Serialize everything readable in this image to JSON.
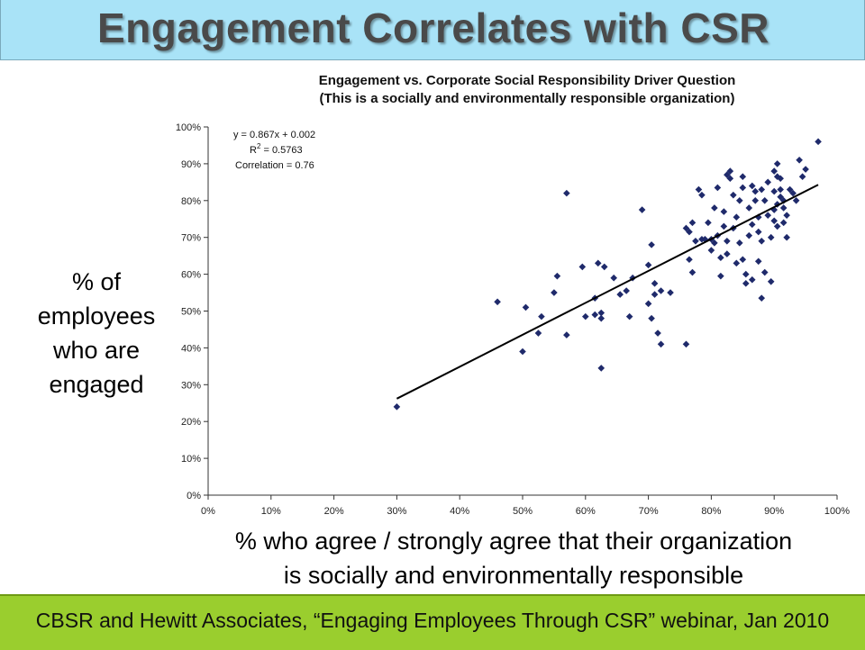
{
  "slide": {
    "title": "Engagement Correlates with CSR",
    "y_axis_caption_lines": [
      "% of",
      "employees",
      "who are",
      "engaged"
    ],
    "x_axis_caption_lines": [
      "% who agree / strongly agree that their organization",
      "is socially and environmentally responsible"
    ],
    "footer": "CBSR and Hewitt Associates, “Engaging Employees Through CSR” webinar, Jan 2010"
  },
  "colors": {
    "header_bg": "#a9e3f7",
    "footer_bg": "#9ace2e",
    "marker": "#1f2a6b",
    "trendline": "#000000"
  },
  "chart_data": {
    "type": "scatter",
    "title_lines": [
      "Engagement vs. Corporate Social Responsibility Driver Question",
      "(This is a socially and environmentally responsible organization)"
    ],
    "xlim": [
      0,
      1
    ],
    "ylim": [
      0,
      1
    ],
    "x_ticks": [
      0,
      0.1,
      0.2,
      0.3,
      0.4,
      0.5,
      0.6,
      0.7,
      0.8,
      0.9,
      1.0
    ],
    "y_ticks": [
      0,
      0.1,
      0.2,
      0.3,
      0.4,
      0.5,
      0.6,
      0.7,
      0.8,
      0.9,
      1.0
    ],
    "x_tick_labels": [
      "0%",
      "10%",
      "20%",
      "30%",
      "40%",
      "50%",
      "60%",
      "70%",
      "80%",
      "90%",
      "100%"
    ],
    "y_tick_labels": [
      "0%",
      "10%",
      "20%",
      "30%",
      "40%",
      "50%",
      "60%",
      "70%",
      "80%",
      "90%",
      "100%"
    ],
    "grid": false,
    "annotation": {
      "equation": "y = 0.867x + 0.002",
      "r2_prefix": "R",
      "r2_sup": "2",
      "r2_value": " = 0.5763",
      "correlation": "Correlation = 0.76"
    },
    "trendline": {
      "slope": 0.867,
      "intercept": 0.002,
      "x_range": [
        0.3,
        0.97
      ]
    },
    "points": [
      [
        0.3,
        0.24
      ],
      [
        0.46,
        0.525
      ],
      [
        0.5,
        0.39
      ],
      [
        0.505,
        0.51
      ],
      [
        0.525,
        0.44
      ],
      [
        0.53,
        0.485
      ],
      [
        0.55,
        0.55
      ],
      [
        0.555,
        0.595
      ],
      [
        0.57,
        0.82
      ],
      [
        0.57,
        0.435
      ],
      [
        0.595,
        0.62
      ],
      [
        0.6,
        0.485
      ],
      [
        0.615,
        0.535
      ],
      [
        0.615,
        0.49
      ],
      [
        0.62,
        0.63
      ],
      [
        0.625,
        0.345
      ],
      [
        0.625,
        0.495
      ],
      [
        0.625,
        0.48
      ],
      [
        0.63,
        0.62
      ],
      [
        0.645,
        0.59
      ],
      [
        0.655,
        0.545
      ],
      [
        0.665,
        0.555
      ],
      [
        0.67,
        0.485
      ],
      [
        0.675,
        0.59
      ],
      [
        0.69,
        0.775
      ],
      [
        0.7,
        0.52
      ],
      [
        0.7,
        0.625
      ],
      [
        0.705,
        0.68
      ],
      [
        0.705,
        0.48
      ],
      [
        0.71,
        0.575
      ],
      [
        0.71,
        0.545
      ],
      [
        0.715,
        0.44
      ],
      [
        0.72,
        0.555
      ],
      [
        0.72,
        0.41
      ],
      [
        0.735,
        0.55
      ],
      [
        0.76,
        0.41
      ],
      [
        0.76,
        0.725
      ],
      [
        0.765,
        0.715
      ],
      [
        0.765,
        0.64
      ],
      [
        0.77,
        0.74
      ],
      [
        0.77,
        0.605
      ],
      [
        0.775,
        0.69
      ],
      [
        0.78,
        0.83
      ],
      [
        0.785,
        0.815
      ],
      [
        0.785,
        0.695
      ],
      [
        0.79,
        0.695
      ],
      [
        0.795,
        0.74
      ],
      [
        0.8,
        0.695
      ],
      [
        0.8,
        0.665
      ],
      [
        0.805,
        0.78
      ],
      [
        0.805,
        0.685
      ],
      [
        0.81,
        0.835
      ],
      [
        0.81,
        0.705
      ],
      [
        0.815,
        0.645
      ],
      [
        0.815,
        0.595
      ],
      [
        0.82,
        0.77
      ],
      [
        0.82,
        0.73
      ],
      [
        0.825,
        0.87
      ],
      [
        0.825,
        0.69
      ],
      [
        0.825,
        0.655
      ],
      [
        0.83,
        0.86
      ],
      [
        0.83,
        0.88
      ],
      [
        0.835,
        0.815
      ],
      [
        0.835,
        0.725
      ],
      [
        0.84,
        0.63
      ],
      [
        0.84,
        0.755
      ],
      [
        0.845,
        0.8
      ],
      [
        0.845,
        0.685
      ],
      [
        0.85,
        0.865
      ],
      [
        0.85,
        0.835
      ],
      [
        0.85,
        0.64
      ],
      [
        0.855,
        0.575
      ],
      [
        0.855,
        0.6
      ],
      [
        0.86,
        0.78
      ],
      [
        0.86,
        0.705
      ],
      [
        0.865,
        0.84
      ],
      [
        0.865,
        0.735
      ],
      [
        0.865,
        0.585
      ],
      [
        0.87,
        0.825
      ],
      [
        0.87,
        0.8
      ],
      [
        0.875,
        0.755
      ],
      [
        0.875,
        0.715
      ],
      [
        0.875,
        0.635
      ],
      [
        0.88,
        0.83
      ],
      [
        0.88,
        0.69
      ],
      [
        0.88,
        0.535
      ],
      [
        0.885,
        0.8
      ],
      [
        0.885,
        0.605
      ],
      [
        0.89,
        0.85
      ],
      [
        0.89,
        0.76
      ],
      [
        0.895,
        0.7
      ],
      [
        0.895,
        0.58
      ],
      [
        0.9,
        0.88
      ],
      [
        0.9,
        0.825
      ],
      [
        0.9,
        0.775
      ],
      [
        0.9,
        0.745
      ],
      [
        0.905,
        0.9
      ],
      [
        0.905,
        0.865
      ],
      [
        0.905,
        0.79
      ],
      [
        0.905,
        0.73
      ],
      [
        0.91,
        0.86
      ],
      [
        0.91,
        0.83
      ],
      [
        0.91,
        0.81
      ],
      [
        0.915,
        0.8
      ],
      [
        0.915,
        0.78
      ],
      [
        0.915,
        0.74
      ],
      [
        0.92,
        0.76
      ],
      [
        0.92,
        0.7
      ],
      [
        0.925,
        0.83
      ],
      [
        0.93,
        0.82
      ],
      [
        0.935,
        0.8
      ],
      [
        0.94,
        0.91
      ],
      [
        0.945,
        0.865
      ],
      [
        0.95,
        0.885
      ],
      [
        0.97,
        0.96
      ]
    ]
  }
}
